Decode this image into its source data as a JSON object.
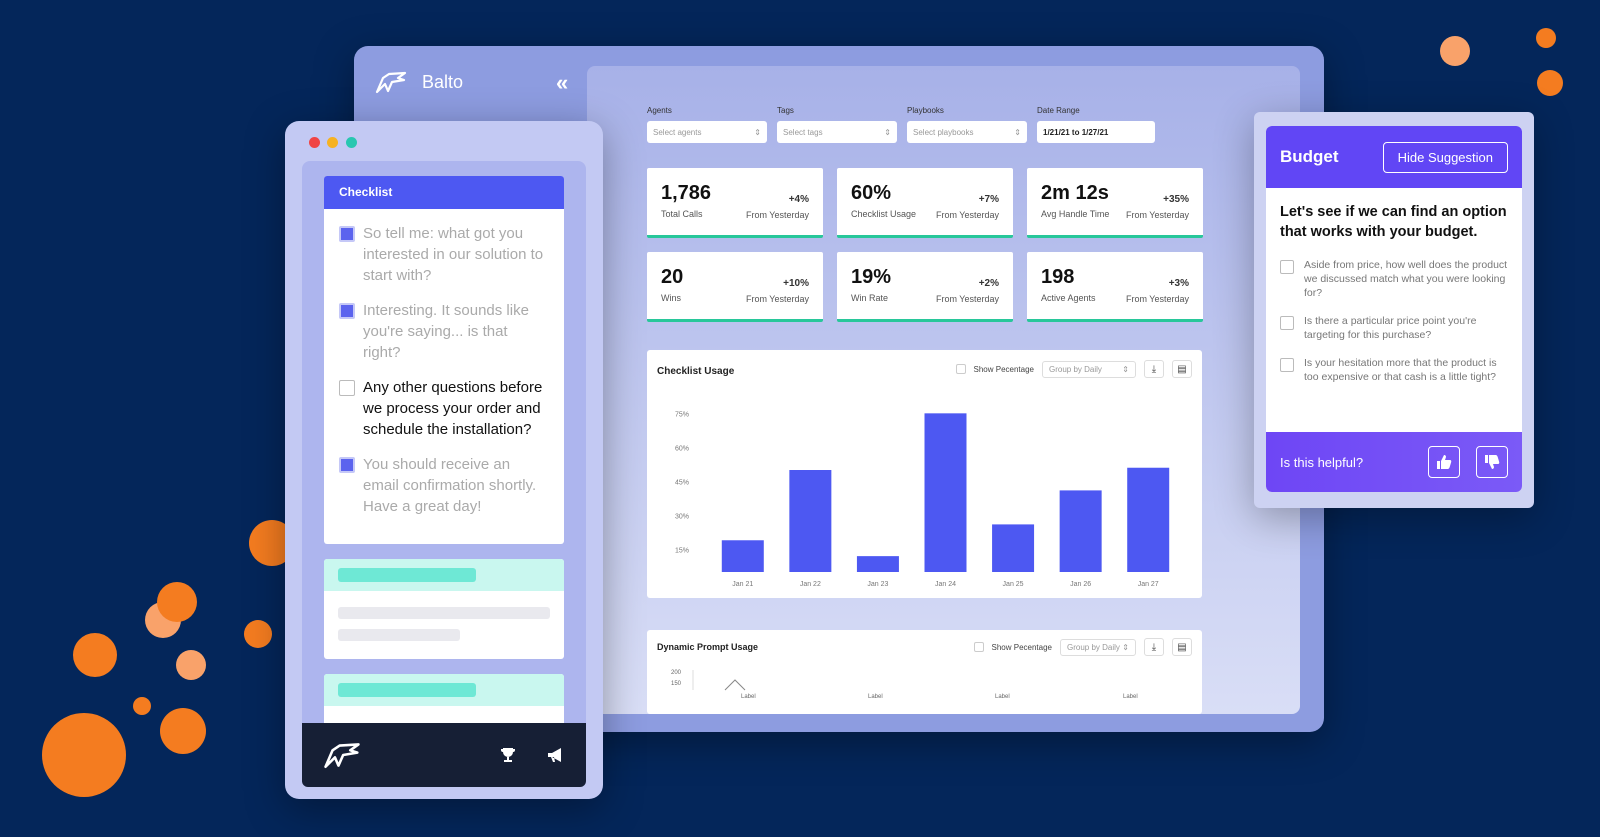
{
  "app": {
    "name": "Balto"
  },
  "filters": [
    {
      "label": "Agents",
      "placeholder": "Select agents"
    },
    {
      "label": "Tags",
      "placeholder": "Select tags"
    },
    {
      "label": "Playbooks",
      "placeholder": "Select playbooks"
    },
    {
      "label": "Date Range",
      "value": "1/21/21 to 1/27/21"
    }
  ],
  "stats": [
    {
      "value": "1,786",
      "label": "Total Calls",
      "change": "+4%",
      "from": "From Yesterday"
    },
    {
      "value": "60%",
      "label": "Checklist Usage",
      "change": "+7%",
      "from": "From Yesterday"
    },
    {
      "value": "2m 12s",
      "label": "Avg Handle Time",
      "change": "+35%",
      "from": "From Yesterday"
    },
    {
      "value": "20",
      "label": "Wins",
      "change": "+10%",
      "from": "From Yesterday"
    },
    {
      "value": "19%",
      "label": "Win Rate",
      "change": "+2%",
      "from": "From Yesterday"
    },
    {
      "value": "198",
      "label": "Active Agents",
      "change": "+3%",
      "from": "From Yesterday"
    }
  ],
  "checklist_usage": {
    "title": "Checklist Usage",
    "show_percentage": "Show Pecentage",
    "group_by": "Group by Daily"
  },
  "dynamic_prompt": {
    "title": "Dynamic Prompt Usage",
    "show_percentage": "Show Pecentage",
    "group_by": "Group by Daily",
    "y_ticks": [
      "200",
      "150"
    ],
    "x_labels": [
      "Label",
      "Label",
      "Label",
      "Label"
    ]
  },
  "chart_data": {
    "type": "bar",
    "title": "Checklist Usage",
    "categories": [
      "Jan 21",
      "Jan 22",
      "Jan 23",
      "Jan 24",
      "Jan 25",
      "Jan 26",
      "Jan 27"
    ],
    "values": [
      19,
      50,
      12,
      75,
      26,
      41,
      51
    ],
    "y_ticks": [
      15,
      30,
      45,
      60,
      75
    ],
    "y_tick_labels": [
      "15%",
      "30%",
      "45%",
      "60%",
      "75%"
    ],
    "ylim": [
      5,
      80
    ],
    "color": "#4d58f2",
    "grid": false
  },
  "checklist": {
    "title": "Checklist",
    "items": [
      {
        "text": "So tell me: what got you interested in our solution to start with?",
        "checked": true
      },
      {
        "text": "Interesting. It sounds like you're saying... is that right?",
        "checked": true
      },
      {
        "text": "Any other questions before we process your order and schedule the installation?",
        "checked": false
      },
      {
        "text": "You should receive an email confirmation shortly. Have a great day!",
        "checked": true
      }
    ]
  },
  "suggestion": {
    "title": "Budget",
    "hide_label": "Hide Suggestion",
    "question": "Let's see if we can find an option that works with your budget.",
    "items": [
      "Aside from price, how well does the product we discussed match what you were looking for?",
      "Is there a particular price point you're targeting for this purchase?",
      "Is your hesitation more that the product is too expensive or that cash is a little tight?"
    ],
    "helpful_label": "Is this helpful?"
  },
  "colors": {
    "background": "#04265a",
    "accent": "#4d58f2",
    "orange": "#f47c20",
    "teal": "#28c79a",
    "purple": "#6146f5"
  },
  "icons": [
    "balto-logo-icon",
    "collapse-chevron-icon",
    "trophy-icon",
    "megaphone-icon",
    "thumbs-up-icon",
    "thumbs-down-icon",
    "download-icon",
    "table-icon"
  ]
}
